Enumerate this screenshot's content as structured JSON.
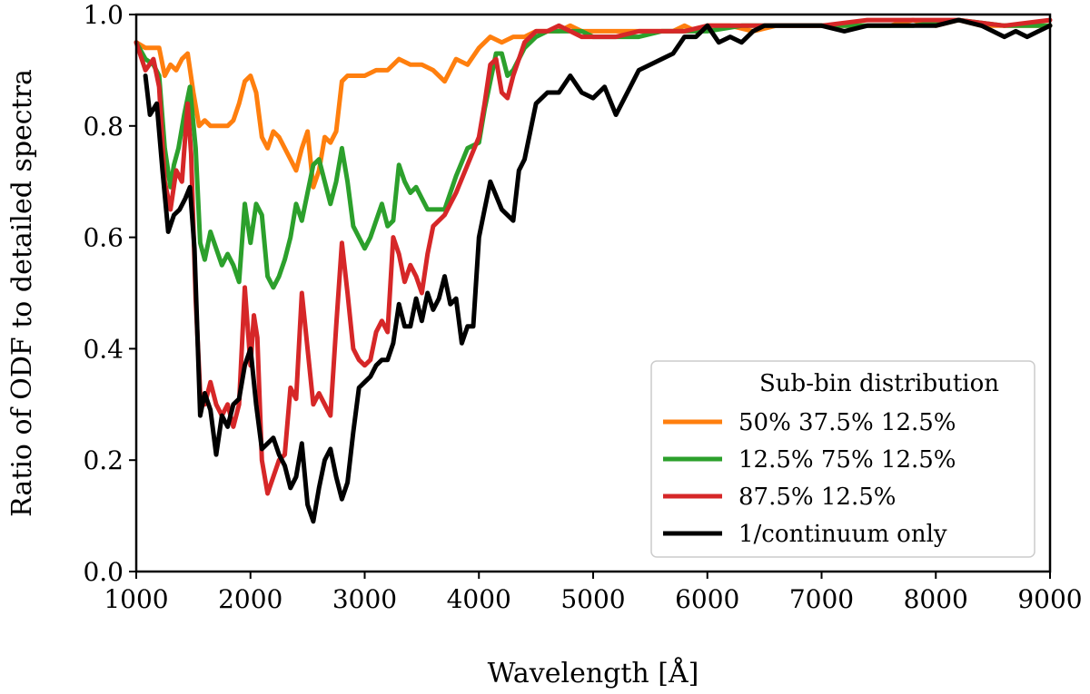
{
  "chart_data": {
    "type": "line",
    "title": "",
    "xlabel": "Wavelength [Å]",
    "ylabel": "Ratio of ODF to detailed spectra",
    "xlim": [
      1000,
      9000
    ],
    "ylim": [
      0.0,
      1.0
    ],
    "xticks": [
      "1000",
      "2000",
      "3000",
      "4000",
      "5000",
      "6000",
      "7000",
      "8000",
      "9000"
    ],
    "yticks": [
      "0.0",
      "0.2",
      "0.4",
      "0.6",
      "0.8",
      "1.0"
    ],
    "grid": false,
    "legend": {
      "title": "Sub-bin distribution",
      "placement": "lower-right"
    },
    "series": [
      {
        "name": "50% 37.5% 12.5%",
        "color": "#ff7f0e",
        "x": [
          1000,
          1080,
          1150,
          1200,
          1250,
          1300,
          1350,
          1400,
          1450,
          1500,
          1550,
          1600,
          1650,
          1700,
          1750,
          1800,
          1850,
          1900,
          1950,
          2000,
          2050,
          2100,
          2150,
          2200,
          2250,
          2300,
          2350,
          2400,
          2450,
          2500,
          2550,
          2600,
          2650,
          2700,
          2750,
          2800,
          2850,
          2900,
          2950,
          3000,
          3100,
          3200,
          3300,
          3400,
          3500,
          3600,
          3700,
          3800,
          3900,
          4000,
          4100,
          4200,
          4300,
          4400,
          4500,
          4600,
          4700,
          4800,
          4900,
          5000,
          5100,
          5200,
          5300,
          5400,
          5500,
          5600,
          5700,
          5800,
          5900,
          6000,
          6200,
          6400,
          6600,
          6800,
          7000,
          7200,
          7400,
          7600,
          7800,
          8000,
          8200,
          8400,
          8600,
          8800,
          9000
        ],
        "y": [
          0.95,
          0.94,
          0.94,
          0.94,
          0.89,
          0.91,
          0.9,
          0.92,
          0.93,
          0.86,
          0.8,
          0.81,
          0.8,
          0.8,
          0.8,
          0.8,
          0.81,
          0.84,
          0.88,
          0.89,
          0.86,
          0.78,
          0.76,
          0.79,
          0.78,
          0.76,
          0.74,
          0.72,
          0.76,
          0.79,
          0.69,
          0.72,
          0.78,
          0.77,
          0.79,
          0.88,
          0.89,
          0.89,
          0.89,
          0.89,
          0.9,
          0.9,
          0.92,
          0.91,
          0.91,
          0.9,
          0.88,
          0.92,
          0.91,
          0.94,
          0.96,
          0.95,
          0.96,
          0.96,
          0.97,
          0.97,
          0.97,
          0.98,
          0.97,
          0.97,
          0.97,
          0.97,
          0.97,
          0.97,
          0.97,
          0.97,
          0.97,
          0.98,
          0.97,
          0.98,
          0.98,
          0.97,
          0.98,
          0.98,
          0.98,
          0.98,
          0.98,
          0.98,
          0.99,
          0.98,
          0.99,
          0.98,
          0.98,
          0.98,
          0.98
        ]
      },
      {
        "name": "12.5% 75% 12.5%",
        "color": "#2ca02c",
        "x": [
          1000,
          1080,
          1150,
          1200,
          1250,
          1300,
          1330,
          1370,
          1420,
          1470,
          1520,
          1560,
          1600,
          1650,
          1700,
          1750,
          1800,
          1850,
          1900,
          1950,
          2000,
          2050,
          2100,
          2150,
          2200,
          2250,
          2300,
          2350,
          2400,
          2450,
          2500,
          2550,
          2600,
          2650,
          2700,
          2750,
          2800,
          2850,
          2900,
          2950,
          3000,
          3050,
          3100,
          3150,
          3200,
          3250,
          3300,
          3350,
          3400,
          3450,
          3500,
          3550,
          3600,
          3700,
          3800,
          3900,
          4000,
          4050,
          4100,
          4150,
          4200,
          4250,
          4300,
          4400,
          4500,
          4600,
          4700,
          4800,
          4900,
          5000,
          5200,
          5400,
          5600,
          5800,
          6000,
          6300,
          6600,
          7000,
          7400,
          7800,
          8200,
          8600,
          9000
        ],
        "y": [
          0.95,
          0.92,
          0.91,
          0.89,
          0.76,
          0.69,
          0.73,
          0.76,
          0.82,
          0.87,
          0.76,
          0.59,
          0.56,
          0.61,
          0.58,
          0.55,
          0.57,
          0.55,
          0.52,
          0.66,
          0.59,
          0.66,
          0.64,
          0.53,
          0.51,
          0.53,
          0.56,
          0.6,
          0.66,
          0.63,
          0.68,
          0.73,
          0.74,
          0.7,
          0.66,
          0.7,
          0.76,
          0.7,
          0.62,
          0.6,
          0.58,
          0.6,
          0.63,
          0.66,
          0.62,
          0.63,
          0.73,
          0.7,
          0.68,
          0.69,
          0.67,
          0.65,
          0.65,
          0.65,
          0.71,
          0.76,
          0.77,
          0.83,
          0.88,
          0.93,
          0.93,
          0.89,
          0.9,
          0.94,
          0.96,
          0.97,
          0.97,
          0.97,
          0.97,
          0.96,
          0.96,
          0.96,
          0.97,
          0.97,
          0.97,
          0.98,
          0.98,
          0.98,
          0.98,
          0.98,
          0.99,
          0.98,
          0.98
        ]
      },
      {
        "name": "87.5% 12.5%",
        "color": "#d62728",
        "x": [
          1000,
          1080,
          1150,
          1200,
          1250,
          1300,
          1350,
          1400,
          1450,
          1480,
          1520,
          1560,
          1600,
          1650,
          1700,
          1750,
          1800,
          1850,
          1900,
          1950,
          2000,
          2030,
          2060,
          2100,
          2150,
          2200,
          2250,
          2300,
          2350,
          2400,
          2450,
          2500,
          2550,
          2600,
          2650,
          2700,
          2750,
          2800,
          2850,
          2900,
          2950,
          3000,
          3050,
          3100,
          3150,
          3200,
          3250,
          3300,
          3350,
          3400,
          3450,
          3500,
          3550,
          3600,
          3700,
          3800,
          3900,
          4000,
          4050,
          4100,
          4150,
          4200,
          4250,
          4300,
          4350,
          4400,
          4500,
          4600,
          4700,
          4800,
          4900,
          5000,
          5200,
          5400,
          5600,
          5800,
          6000,
          6300,
          6600,
          7000,
          7400,
          7800,
          8200,
          8600,
          9000
        ],
        "y": [
          0.95,
          0.9,
          0.92,
          0.87,
          0.7,
          0.65,
          0.72,
          0.7,
          0.84,
          0.75,
          0.49,
          0.32,
          0.3,
          0.34,
          0.3,
          0.28,
          0.3,
          0.26,
          0.3,
          0.51,
          0.37,
          0.46,
          0.42,
          0.2,
          0.14,
          0.17,
          0.2,
          0.21,
          0.33,
          0.31,
          0.5,
          0.4,
          0.3,
          0.32,
          0.3,
          0.28,
          0.44,
          0.59,
          0.5,
          0.4,
          0.38,
          0.37,
          0.38,
          0.43,
          0.45,
          0.43,
          0.6,
          0.57,
          0.52,
          0.55,
          0.53,
          0.5,
          0.57,
          0.62,
          0.64,
          0.68,
          0.73,
          0.78,
          0.84,
          0.91,
          0.92,
          0.86,
          0.85,
          0.89,
          0.92,
          0.95,
          0.97,
          0.97,
          0.98,
          0.97,
          0.96,
          0.96,
          0.96,
          0.97,
          0.97,
          0.97,
          0.98,
          0.98,
          0.98,
          0.98,
          0.99,
          0.99,
          0.99,
          0.98,
          0.99
        ]
      },
      {
        "name": "1/continuum only",
        "color": "#000000",
        "x": [
          1080,
          1120,
          1180,
          1230,
          1280,
          1330,
          1380,
          1430,
          1470,
          1510,
          1560,
          1600,
          1650,
          1700,
          1750,
          1800,
          1850,
          1900,
          1950,
          2000,
          2050,
          2100,
          2150,
          2200,
          2250,
          2300,
          2350,
          2400,
          2450,
          2500,
          2550,
          2600,
          2650,
          2700,
          2750,
          2800,
          2850,
          2900,
          2950,
          3000,
          3050,
          3100,
          3150,
          3200,
          3250,
          3300,
          3350,
          3400,
          3450,
          3500,
          3550,
          3600,
          3650,
          3700,
          3750,
          3800,
          3850,
          3900,
          3950,
          4000,
          4050,
          4100,
          4200,
          4300,
          4350,
          4400,
          4500,
          4600,
          4700,
          4800,
          4900,
          5000,
          5100,
          5200,
          5300,
          5400,
          5500,
          5600,
          5700,
          5800,
          5900,
          6000,
          6100,
          6200,
          6300,
          6400,
          6500,
          6600,
          6800,
          7000,
          7200,
          7400,
          7600,
          7800,
          8000,
          8200,
          8400,
          8500,
          8600,
          8700,
          8800,
          8900,
          9000
        ],
        "y": [
          0.89,
          0.82,
          0.84,
          0.72,
          0.61,
          0.64,
          0.65,
          0.67,
          0.69,
          0.58,
          0.28,
          0.32,
          0.29,
          0.21,
          0.28,
          0.26,
          0.3,
          0.31,
          0.37,
          0.4,
          0.3,
          0.22,
          0.23,
          0.24,
          0.21,
          0.19,
          0.15,
          0.17,
          0.23,
          0.12,
          0.09,
          0.15,
          0.2,
          0.22,
          0.17,
          0.13,
          0.16,
          0.25,
          0.33,
          0.34,
          0.35,
          0.37,
          0.38,
          0.38,
          0.41,
          0.48,
          0.44,
          0.44,
          0.49,
          0.45,
          0.5,
          0.47,
          0.49,
          0.53,
          0.48,
          0.49,
          0.41,
          0.44,
          0.44,
          0.6,
          0.65,
          0.7,
          0.65,
          0.63,
          0.72,
          0.74,
          0.84,
          0.86,
          0.86,
          0.89,
          0.86,
          0.85,
          0.87,
          0.82,
          0.86,
          0.9,
          0.91,
          0.92,
          0.93,
          0.96,
          0.96,
          0.98,
          0.95,
          0.96,
          0.95,
          0.97,
          0.98,
          0.98,
          0.98,
          0.98,
          0.97,
          0.98,
          0.98,
          0.98,
          0.98,
          0.99,
          0.98,
          0.97,
          0.96,
          0.97,
          0.96,
          0.97,
          0.98
        ]
      }
    ]
  }
}
